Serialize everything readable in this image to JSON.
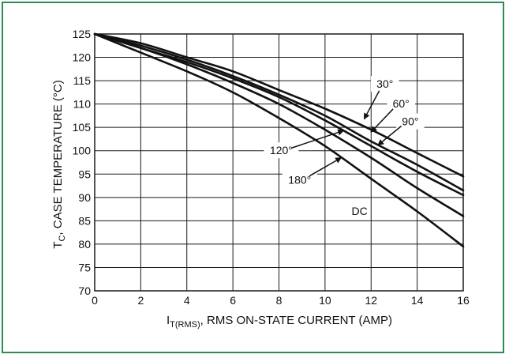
{
  "colors": {
    "frame": "#2e8b57",
    "grid": "#1a1a1a",
    "curve": "#111111",
    "background": "#ffffff"
  },
  "chart_data": {
    "type": "line",
    "title": "",
    "xlabel": {
      "main": "I",
      "subscript": "T(RMS)",
      "rest": ", RMS ON-STATE CURRENT (AMP)"
    },
    "ylabel": {
      "main": "T",
      "subscript": "C",
      "rest": ", CASE TEMPERATURE (°C)"
    },
    "xlim": [
      0,
      16
    ],
    "ylim": [
      70,
      125
    ],
    "x_ticks": [
      0,
      2,
      4,
      6,
      8,
      10,
      12,
      14,
      16
    ],
    "y_ticks": [
      70,
      75,
      80,
      85,
      90,
      95,
      100,
      105,
      110,
      115,
      120,
      125
    ],
    "grid": true,
    "legend": "none",
    "series": [
      {
        "name": "30°",
        "x": [
          0,
          2,
          4,
          6,
          8,
          10,
          12,
          14,
          16
        ],
        "y": [
          125,
          123,
          120,
          117,
          113,
          109,
          104.5,
          99.5,
          94.5
        ]
      },
      {
        "name": "60°",
        "x": [
          0,
          2,
          4,
          6,
          8,
          10,
          12,
          14,
          16
        ],
        "y": [
          125,
          122.5,
          119.5,
          116,
          112,
          107.5,
          102,
          97,
          91.5
        ]
      },
      {
        "name": "90°",
        "x": [
          0,
          2,
          4,
          6,
          8,
          10,
          12,
          14,
          16
        ],
        "y": [
          125,
          122,
          119,
          115.5,
          111.5,
          106.5,
          101,
          95.5,
          90.5
        ]
      },
      {
        "name": "120°",
        "x": [
          0,
          2,
          4,
          6,
          8,
          10,
          12,
          14,
          16
        ],
        "y": [
          125,
          122,
          118.5,
          114.5,
          110,
          104.5,
          98.5,
          92,
          86
        ]
      },
      {
        "name": "180°",
        "x": [
          0,
          2,
          4,
          6,
          8,
          10,
          12,
          14,
          16
        ],
        "y": [
          125,
          121,
          117,
          112.5,
          107,
          101,
          94,
          87,
          79.5
        ]
      }
    ],
    "annotations": [
      {
        "text": "30°",
        "x": 12.6,
        "y": 114.3,
        "arrow_to": [
          11.7,
          106.8
        ]
      },
      {
        "text": "60°",
        "x": 13.3,
        "y": 110.1,
        "arrow_to": [
          12.0,
          104.0
        ]
      },
      {
        "text": "90°",
        "x": 13.7,
        "y": 106.3,
        "arrow_to": [
          12.3,
          101.2
        ]
      },
      {
        "text": "120°",
        "x": 8.1,
        "y": 100.1,
        "arrow_to": [
          10.8,
          104.3
        ]
      },
      {
        "text": "180°",
        "x": 8.9,
        "y": 93.8,
        "arrow_to": [
          10.7,
          98.5
        ]
      },
      {
        "text": "DC",
        "x": 11.5,
        "y": 87.1
      }
    ]
  }
}
